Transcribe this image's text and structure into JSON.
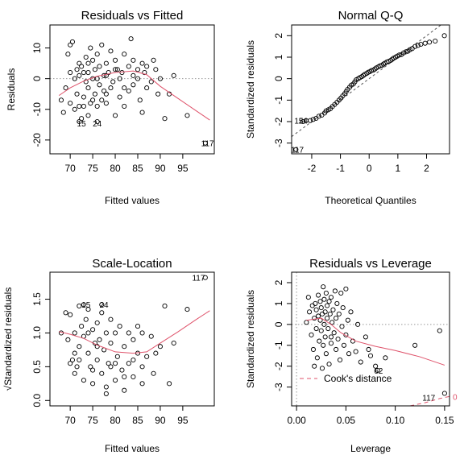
{
  "chart_data": [
    {
      "type": "scatter",
      "title": "Residuals vs Fitted",
      "xlabel": "Fitted values",
      "ylabel": "Residuals",
      "xlim": [
        65.5,
        102
      ],
      "ylim": [
        -24.5,
        17.5
      ],
      "xticks": [
        70,
        75,
        80,
        85,
        90,
        95
      ],
      "yticks": [
        -20,
        -10,
        0,
        10
      ],
      "ref_line_y": 0,
      "smooth": [
        [
          67.5,
          -5.5
        ],
        [
          70,
          -3
        ],
        [
          73,
          -0.8
        ],
        [
          76,
          0.8
        ],
        [
          80,
          2
        ],
        [
          84,
          2.5
        ],
        [
          87,
          1.3
        ],
        [
          90,
          -2.5
        ],
        [
          94,
          -6.5
        ],
        [
          98,
          -10.5
        ],
        [
          101,
          -13.5
        ]
      ],
      "labels": [
        {
          "text": "15",
          "x": 72.5,
          "y": -14.5
        },
        {
          "text": "24",
          "x": 76,
          "y": -14.5
        },
        {
          "text": "117",
          "x": 100.5,
          "y": -21
        }
      ],
      "points": [
        [
          68,
          -7
        ],
        [
          68.5,
          -11
        ],
        [
          69,
          -3
        ],
        [
          69.5,
          8
        ],
        [
          70,
          11
        ],
        [
          70.5,
          12
        ],
        [
          71,
          -10
        ],
        [
          71,
          0
        ],
        [
          71.5,
          -5
        ],
        [
          71.5,
          3
        ],
        [
          72,
          -9
        ],
        [
          72,
          1
        ],
        [
          72.5,
          4
        ],
        [
          72.5,
          -13
        ],
        [
          73,
          -6
        ],
        [
          73,
          2
        ],
        [
          73.5,
          -1
        ],
        [
          73.5,
          7
        ],
        [
          74,
          -12
        ],
        [
          74,
          5
        ],
        [
          74,
          -3
        ],
        [
          74.5,
          10
        ],
        [
          74.5,
          -8
        ],
        [
          75,
          0
        ],
        [
          75,
          6
        ],
        [
          75.5,
          -5
        ],
        [
          75.5,
          3
        ],
        [
          76,
          -9
        ],
        [
          76,
          8
        ],
        [
          76.5,
          -2
        ],
        [
          76.5,
          4
        ],
        [
          77,
          -7
        ],
        [
          77,
          11
        ],
        [
          77.5,
          1
        ],
        [
          77.5,
          -4
        ],
        [
          78,
          5
        ],
        [
          78,
          -8
        ],
        [
          78.5,
          2
        ],
        [
          79,
          -3
        ],
        [
          79,
          9
        ],
        [
          79.5,
          -1
        ],
        [
          80,
          6
        ],
        [
          80,
          -12
        ],
        [
          80.5,
          3
        ],
        [
          81,
          -6
        ],
        [
          81,
          0
        ],
        [
          81.5,
          2
        ],
        [
          82,
          8
        ],
        [
          82,
          -9
        ],
        [
          83,
          -4
        ],
        [
          83,
          4
        ],
        [
          83.5,
          13
        ],
        [
          84,
          -2
        ],
        [
          84,
          6
        ],
        [
          85,
          0
        ],
        [
          85,
          3
        ],
        [
          85.5,
          -7
        ],
        [
          86,
          5
        ],
        [
          86,
          -11
        ],
        [
          86.5,
          2
        ],
        [
          87,
          4
        ],
        [
          87,
          -3
        ],
        [
          88,
          -1
        ],
        [
          88.5,
          6
        ],
        [
          89,
          3
        ],
        [
          89.5,
          -5
        ],
        [
          90,
          0
        ],
        [
          91,
          -13
        ],
        [
          92,
          -5
        ],
        [
          93,
          1
        ],
        [
          96,
          -12
        ],
        [
          100,
          -21
        ],
        [
          72,
          -14
        ],
        [
          76,
          -14
        ],
        [
          70,
          -8
        ],
        [
          73,
          -9
        ],
        [
          75,
          -7
        ],
        [
          78,
          -5
        ],
        [
          82,
          -3
        ],
        [
          70,
          2
        ],
        [
          72,
          5
        ],
        [
          74,
          2
        ],
        [
          76,
          0
        ],
        [
          78,
          1
        ],
        [
          80,
          3
        ],
        [
          84,
          1
        ]
      ]
    },
    {
      "type": "scatter",
      "title": "Normal Q-Q",
      "xlabel": "Theoretical Quantiles",
      "ylabel": "Standardized residuals",
      "xlim": [
        -2.7,
        2.8
      ],
      "ylim": [
        -3.5,
        2.5
      ],
      "xticks": [
        -2,
        -1,
        0,
        1,
        2
      ],
      "yticks": [
        -3,
        -2,
        -1,
        0,
        1,
        2
      ],
      "qq_line": [
        [
          -2.7,
          -2.7
        ],
        [
          2.8,
          2.8
        ]
      ],
      "labels": [
        {
          "text": "15",
          "x": -2.45,
          "y": -1.95
        },
        {
          "text": "24",
          "x": -2.3,
          "y": -1.95
        },
        {
          "text": "117",
          "x": -2.5,
          "y": -3.3
        }
      ],
      "points": [
        [
          -2.55,
          -3.3
        ],
        [
          -2.3,
          -2.0
        ],
        [
          -2.2,
          -1.95
        ],
        [
          -2.05,
          -1.95
        ],
        [
          -1.95,
          -1.9
        ],
        [
          -1.85,
          -1.85
        ],
        [
          -1.75,
          -1.75
        ],
        [
          -1.65,
          -1.7
        ],
        [
          -1.55,
          -1.6
        ],
        [
          -1.5,
          -1.5
        ],
        [
          -1.42,
          -1.45
        ],
        [
          -1.35,
          -1.4
        ],
        [
          -1.28,
          -1.3
        ],
        [
          -1.2,
          -1.2
        ],
        [
          -1.12,
          -1.1
        ],
        [
          -1.05,
          -1.0
        ],
        [
          -0.98,
          -0.9
        ],
        [
          -0.92,
          -0.8
        ],
        [
          -0.85,
          -0.7
        ],
        [
          -0.8,
          -0.6
        ],
        [
          -0.75,
          -0.5
        ],
        [
          -0.68,
          -0.4
        ],
        [
          -0.62,
          -0.3
        ],
        [
          -0.55,
          -0.25
        ],
        [
          -0.5,
          -0.15
        ],
        [
          -0.45,
          -0.05
        ],
        [
          -0.38,
          0.0
        ],
        [
          -0.32,
          0.05
        ],
        [
          -0.25,
          0.1
        ],
        [
          -0.2,
          0.15
        ],
        [
          -0.15,
          0.2
        ],
        [
          -0.08,
          0.25
        ],
        [
          -0.03,
          0.3
        ],
        [
          0.03,
          0.33
        ],
        [
          0.08,
          0.38
        ],
        [
          0.15,
          0.4
        ],
        [
          0.2,
          0.45
        ],
        [
          0.25,
          0.5
        ],
        [
          0.32,
          0.55
        ],
        [
          0.38,
          0.6
        ],
        [
          0.45,
          0.62
        ],
        [
          0.5,
          0.68
        ],
        [
          0.55,
          0.72
        ],
        [
          0.62,
          0.78
        ],
        [
          0.68,
          0.8
        ],
        [
          0.75,
          0.85
        ],
        [
          0.8,
          0.9
        ],
        [
          0.85,
          0.95
        ],
        [
          0.92,
          1.0
        ],
        [
          0.98,
          1.05
        ],
        [
          1.05,
          1.1
        ],
        [
          1.12,
          1.12
        ],
        [
          1.2,
          1.2
        ],
        [
          1.28,
          1.25
        ],
        [
          1.35,
          1.28
        ],
        [
          1.42,
          1.35
        ],
        [
          1.5,
          1.4
        ],
        [
          1.6,
          1.5
        ],
        [
          1.7,
          1.55
        ],
        [
          1.8,
          1.6
        ],
        [
          1.95,
          1.65
        ],
        [
          2.1,
          1.7
        ],
        [
          2.3,
          1.75
        ],
        [
          2.62,
          2.0
        ]
      ]
    },
    {
      "type": "scatter",
      "title": "Scale-Location",
      "xlabel": "Fitted values",
      "ylabel": "√Standardized residuals",
      "xlim": [
        65.5,
        102
      ],
      "ylim": [
        -0.08,
        1.9
      ],
      "xticks": [
        70,
        75,
        80,
        85,
        90,
        95
      ],
      "yticks": [
        0.0,
        0.5,
        1.0,
        1.5
      ],
      "ytick_labels": [
        "0.0",
        "0.5",
        "1.0",
        "1.5"
      ],
      "smooth": [
        [
          67.5,
          1.02
        ],
        [
          70,
          0.98
        ],
        [
          73,
          0.92
        ],
        [
          76,
          0.82
        ],
        [
          80,
          0.72
        ],
        [
          84,
          0.7
        ],
        [
          87,
          0.72
        ],
        [
          90,
          0.85
        ],
        [
          94,
          1.02
        ],
        [
          98,
          1.2
        ],
        [
          101,
          1.33
        ]
      ],
      "labels": [
        {
          "text": "15",
          "x": 73.5,
          "y": 1.42
        },
        {
          "text": "24",
          "x": 77.5,
          "y": 1.42
        },
        {
          "text": "117",
          "x": 98.5,
          "y": 1.82
        }
      ],
      "points": [
        [
          68,
          1.0
        ],
        [
          69,
          1.3
        ],
        [
          69.5,
          0.9
        ],
        [
          70,
          1.27
        ],
        [
          70.5,
          0.6
        ],
        [
          71,
          0.4
        ],
        [
          71,
          1.0
        ],
        [
          71.5,
          0.5
        ],
        [
          72,
          1.4
        ],
        [
          72,
          0.8
        ],
        [
          72.5,
          1.1
        ],
        [
          73,
          0.3
        ],
        [
          73,
          0.95
        ],
        [
          73.5,
          1.2
        ],
        [
          74,
          0.7
        ],
        [
          74,
          1.35
        ],
        [
          74.5,
          0.5
        ],
        [
          75,
          1.05
        ],
        [
          75,
          0.25
        ],
        [
          75.5,
          0.85
        ],
        [
          76,
          1.15
        ],
        [
          76,
          0.6
        ],
        [
          76.5,
          0.9
        ],
        [
          77,
          1.3
        ],
        [
          77,
          0.4
        ],
        [
          77.5,
          0.75
        ],
        [
          78,
          1.0
        ],
        [
          78,
          0.1
        ],
        [
          78.5,
          0.55
        ],
        [
          79,
          1.2
        ],
        [
          79,
          0.85
        ],
        [
          80,
          0.3
        ],
        [
          80,
          1.0
        ],
        [
          80.5,
          0.65
        ],
        [
          81,
          1.1
        ],
        [
          81.5,
          0.45
        ],
        [
          82,
          0.8
        ],
        [
          82,
          0.15
        ],
        [
          83,
          1.0
        ],
        [
          83,
          0.55
        ],
        [
          84,
          0.9
        ],
        [
          84,
          0.35
        ],
        [
          85,
          0.7
        ],
        [
          85,
          1.1
        ],
        [
          86,
          0.5
        ],
        [
          86,
          0.25
        ],
        [
          87,
          0.65
        ],
        [
          88,
          0.95
        ],
        [
          88.5,
          0.4
        ],
        [
          89,
          0.7
        ],
        [
          90,
          0.8
        ],
        [
          91,
          1.4
        ],
        [
          92,
          0.25
        ],
        [
          93,
          0.85
        ],
        [
          96,
          1.35
        ],
        [
          100,
          1.82
        ],
        [
          73,
          1.42
        ],
        [
          77,
          1.42
        ],
        [
          70,
          0.55
        ],
        [
          72,
          0.6
        ],
        [
          74,
          1.0
        ],
        [
          76,
          0.8
        ],
        [
          78,
          0.2
        ],
        [
          80,
          0.55
        ],
        [
          84,
          0.6
        ],
        [
          86,
          1.0
        ],
        [
          71,
          0.7
        ],
        [
          75,
          0.45
        ],
        [
          79,
          0.5
        ],
        [
          82,
          0.35
        ]
      ]
    },
    {
      "type": "scatter",
      "title": "Residuals vs Leverage",
      "xlabel": "Leverage",
      "ylabel": "Standardized residuals",
      "xlim": [
        -0.005,
        0.155
      ],
      "ylim": [
        -3.9,
        2.5
      ],
      "xticks": [
        0.0,
        0.05,
        0.1,
        0.15
      ],
      "xtick_labels": [
        "0.00",
        "0.05",
        "0.10",
        "0.15"
      ],
      "yticks": [
        -3,
        -2,
        -1,
        0,
        1,
        2
      ],
      "ref_line_y": 0,
      "ref_line_x": 0,
      "legend": {
        "label": "Cook's distance",
        "placement": "bottom-left"
      },
      "cook_contour_label": "0",
      "smooth": [
        [
          0.01,
          0.2
        ],
        [
          0.025,
          0.3
        ],
        [
          0.035,
          0.0
        ],
        [
          0.045,
          -0.4
        ],
        [
          0.06,
          -0.8
        ],
        [
          0.08,
          -1.05
        ],
        [
          0.1,
          -1.25
        ],
        [
          0.125,
          -1.55
        ],
        [
          0.15,
          -1.95
        ]
      ],
      "cook_curve": [
        [
          0.115,
          -3.9
        ],
        [
          0.13,
          -3.75
        ],
        [
          0.145,
          -3.55
        ],
        [
          0.155,
          -3.45
        ]
      ],
      "labels": [
        {
          "text": "62",
          "x": 0.083,
          "y": -2.2
        },
        {
          "text": "117",
          "x": 0.134,
          "y": -3.5
        }
      ],
      "points": [
        [
          0.01,
          0.1
        ],
        [
          0.012,
          1.3
        ],
        [
          0.013,
          0.6
        ],
        [
          0.015,
          -0.5
        ],
        [
          0.016,
          0.9
        ],
        [
          0.017,
          -1.2
        ],
        [
          0.018,
          0.3
        ],
        [
          0.019,
          1.0
        ],
        [
          0.02,
          -0.2
        ],
        [
          0.02,
          0.7
        ],
        [
          0.021,
          -1.6
        ],
        [
          0.022,
          0.4
        ],
        [
          0.022,
          1.4
        ],
        [
          0.023,
          -0.8
        ],
        [
          0.024,
          0.2
        ],
        [
          0.024,
          1.1
        ],
        [
          0.025,
          -0.3
        ],
        [
          0.025,
          0.8
        ],
        [
          0.026,
          -2.1
        ],
        [
          0.026,
          0.5
        ],
        [
          0.027,
          1.8
        ],
        [
          0.027,
          -1.0
        ],
        [
          0.028,
          0.0
        ],
        [
          0.028,
          1.2
        ],
        [
          0.029,
          -0.6
        ],
        [
          0.029,
          0.6
        ],
        [
          0.03,
          1.5
        ],
        [
          0.03,
          -1.4
        ],
        [
          0.031,
          0.3
        ],
        [
          0.031,
          0.9
        ],
        [
          0.032,
          -0.2
        ],
        [
          0.033,
          1.1
        ],
        [
          0.033,
          -1.9
        ],
        [
          0.034,
          0.5
        ],
        [
          0.035,
          -0.9
        ],
        [
          0.035,
          1.3
        ],
        [
          0.036,
          0.1
        ],
        [
          0.037,
          0.7
        ],
        [
          0.038,
          -0.4
        ],
        [
          0.039,
          1.6
        ],
        [
          0.04,
          -1.2
        ],
        [
          0.04,
          0.3
        ],
        [
          0.041,
          1.0
        ],
        [
          0.042,
          -0.7
        ],
        [
          0.043,
          0.5
        ],
        [
          0.044,
          -1.7
        ],
        [
          0.045,
          1.5
        ],
        [
          0.046,
          -0.1
        ],
        [
          0.047,
          0.8
        ],
        [
          0.048,
          -1.0
        ],
        [
          0.05,
          1.7
        ],
        [
          0.05,
          -0.5
        ],
        [
          0.052,
          0.2
        ],
        [
          0.053,
          -1.4
        ],
        [
          0.055,
          0.6
        ],
        [
          0.057,
          -0.8
        ],
        [
          0.06,
          -1.3
        ],
        [
          0.062,
          0.0
        ],
        [
          0.065,
          -1.8
        ],
        [
          0.07,
          -0.6
        ],
        [
          0.073,
          -1.2
        ],
        [
          0.075,
          -1.5
        ],
        [
          0.08,
          -2.0
        ],
        [
          0.082,
          -2.2
        ],
        [
          0.09,
          -1.6
        ],
        [
          0.12,
          -1.0
        ],
        [
          0.145,
          -0.3
        ],
        [
          0.15,
          -3.3
        ],
        [
          0.018,
          -2.0
        ],
        [
          0.035,
          -0.6
        ]
      ]
    }
  ]
}
